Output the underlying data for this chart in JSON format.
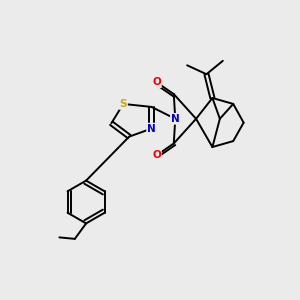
{
  "background_color": "#ebebeb",
  "atom_colors": {
    "C": "#000000",
    "N": "#0000cc",
    "O": "#ee0000",
    "S": "#ccaa00"
  },
  "figsize": [
    3.0,
    3.0
  ],
  "dpi": 100,
  "xlim": [
    0,
    10
  ],
  "ylim": [
    0,
    10
  ]
}
